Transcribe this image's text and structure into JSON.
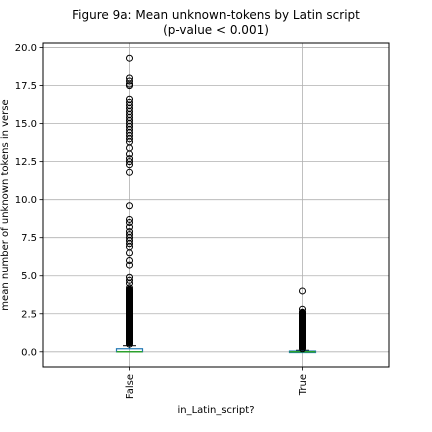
{
  "chart_data": {
    "type": "boxplot",
    "title": "Figure 9a: Mean unknown-tokens by Latin script",
    "subtitle": "(p-value < 0.001)",
    "xlabel": "in_Latin_script?",
    "ylabel": "mean number of unknown tokens in verse",
    "categories": [
      "False",
      "True"
    ],
    "ylim": [
      -1.0,
      20.3
    ],
    "yticks": [
      0.0,
      2.5,
      5.0,
      7.5,
      10.0,
      12.5,
      15.0,
      17.5,
      20.0
    ],
    "ytick_labels": [
      "0.0",
      "2.5",
      "5.0",
      "7.5",
      "10.0",
      "12.5",
      "15.0",
      "17.5",
      "20.0"
    ],
    "grid": true,
    "box_color": "#1f77b4",
    "median_color": "#2ca02c",
    "outlier_color": "#000000",
    "boxes": [
      {
        "category": "False",
        "whisker_low": 0.0,
        "q1": 0.0,
        "median": 0.0,
        "q3": 0.2,
        "whisker_high": 0.4,
        "fliers": [
          19.3,
          18.0,
          17.8,
          17.6,
          17.5,
          16.6,
          16.4,
          16.2,
          16.0,
          15.8,
          15.6,
          15.4,
          15.2,
          15.0,
          14.8,
          14.6,
          14.4,
          14.2,
          14.0,
          13.8,
          13.4,
          13.0,
          12.7,
          12.5,
          12.3,
          11.8,
          9.6,
          8.7,
          8.5,
          8.2,
          7.9,
          7.7,
          7.5,
          7.3,
          7.1,
          6.9,
          6.5,
          6.0,
          5.7,
          4.9,
          4.7,
          4.5,
          4.2,
          4.0,
          3.8,
          3.6,
          3.4,
          3.2,
          3.0,
          2.8,
          2.6,
          2.4,
          2.2,
          2.0,
          1.8,
          1.6,
          1.4,
          1.2,
          1.0,
          0.8,
          0.6,
          0.5
        ]
      },
      {
        "category": "True",
        "whisker_low": 0.0,
        "q1": 0.0,
        "median": 0.0,
        "q3": 0.05,
        "whisker_high": 0.1,
        "fliers": [
          4.0,
          2.8,
          2.6,
          2.4,
          2.2,
          2.0,
          1.8,
          1.6,
          1.4,
          1.2,
          1.0,
          0.8,
          0.6,
          0.4,
          0.3,
          0.2
        ]
      }
    ]
  }
}
